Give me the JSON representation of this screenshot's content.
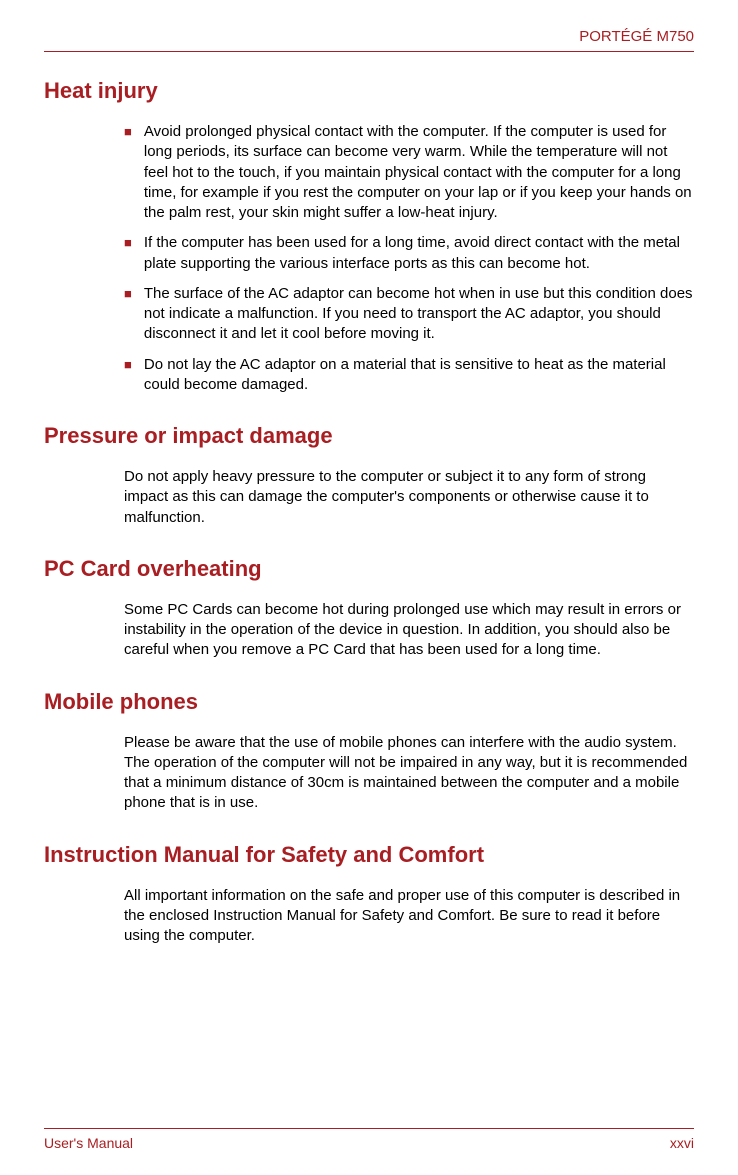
{
  "header": {
    "product_name": "PORTÉGÉ M750"
  },
  "colors": {
    "accent": "#a81e22",
    "text": "#000000",
    "background": "#ffffff"
  },
  "typography": {
    "heading_fontsize": 22,
    "body_fontsize": 15,
    "footer_fontsize": 14,
    "font_family": "Arial"
  },
  "sections": {
    "heat_injury": {
      "title": "Heat injury",
      "bullets": [
        "Avoid prolonged physical contact with the computer. If the computer is used for long periods, its surface can become very warm. While the temperature will not feel hot to the touch, if you maintain physical contact with the computer for a long time, for example if you rest the computer on your lap or if you keep your hands on the palm rest, your skin might suffer a low-heat injury.",
        "If the computer has been used for a long time, avoid direct contact with the metal plate supporting the various interface ports as this can become hot.",
        "The surface of the AC adaptor can become hot when in use but this condition does not indicate a malfunction. If you need to transport the AC adaptor, you should disconnect it and let it cool before moving it.",
        "Do not lay the AC adaptor on a material that is sensitive to heat as the material could become damaged."
      ]
    },
    "pressure": {
      "title": "Pressure or impact damage",
      "text": "Do not apply heavy pressure to the computer or subject it to any form of strong impact as this can damage the computer's components or otherwise cause it to malfunction."
    },
    "pc_card": {
      "title": "PC Card overheating",
      "text": "Some PC Cards can become hot during prolonged use which may result in errors or instability in the operation of the device in question. In addition, you should also be careful when you remove a PC Card that has been used for a long time."
    },
    "mobile": {
      "title": "Mobile phones",
      "text": "Please be aware that the use of mobile phones can interfere with the audio system. The operation of the computer will not be impaired in any way, but it is recommended that a minimum distance of 30cm is maintained between the computer and a mobile phone that is in use."
    },
    "instruction": {
      "title": "Instruction Manual for Safety and Comfort",
      "text": "All important information on the safe and proper use of this computer is described in the enclosed Instruction Manual for Safety and Comfort. Be sure to read it before using the computer."
    }
  },
  "footer": {
    "left": "User's Manual",
    "right": "xxvi"
  }
}
